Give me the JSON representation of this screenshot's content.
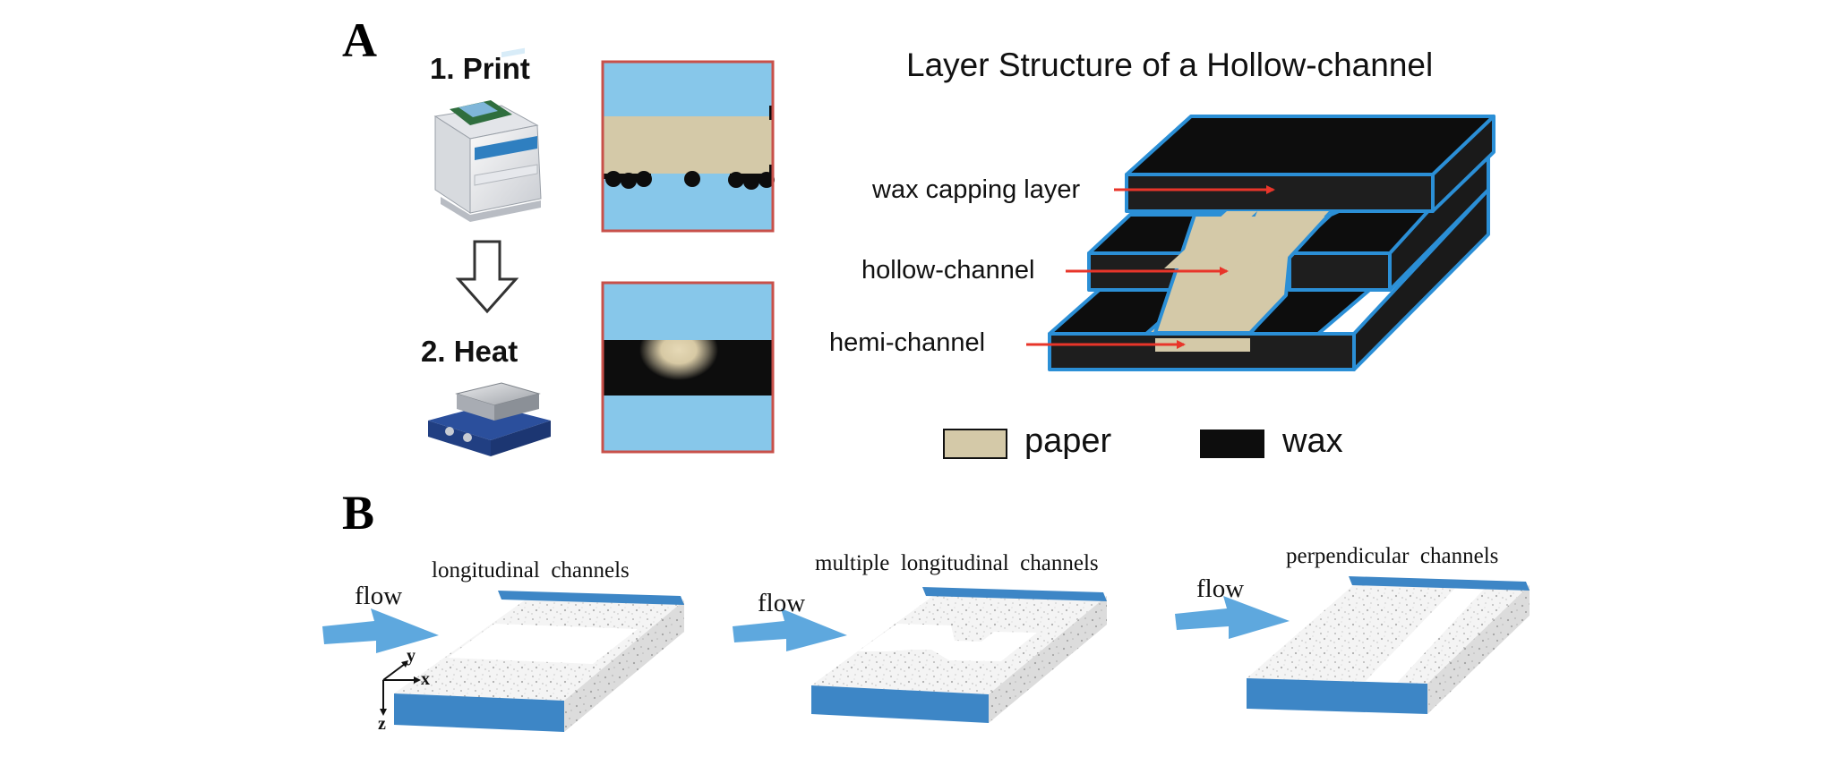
{
  "panel_a": {
    "letter": "A",
    "step1": "1. Print",
    "step2": "2. Heat",
    "title": "Layer Structure of a Hollow-channel",
    "labels": {
      "capping": "wax capping layer",
      "hollow": "hollow-channel",
      "hemi": "hemi-channel"
    },
    "legend": {
      "paper": "paper",
      "wax": "wax"
    }
  },
  "panel_b": {
    "letter": "B",
    "flow": "flow",
    "axis": {
      "x": "x",
      "y": "y",
      "z": "z"
    },
    "blocks": [
      {
        "title": "longitudinal  channels"
      },
      {
        "title": "multiple  longitudinal  channels"
      },
      {
        "title": "perpendicular  channels"
      }
    ]
  },
  "colors": {
    "paper": "#d4c9a8",
    "wax": "#0d0d0d",
    "edge_blue": "#2b8fd6",
    "sky": "#87c7ea",
    "frame_red": "#c8504a",
    "arrow_red": "#e8352a",
    "flow_blue": "#5ea8de",
    "slab_blue": "#3d86c6"
  }
}
